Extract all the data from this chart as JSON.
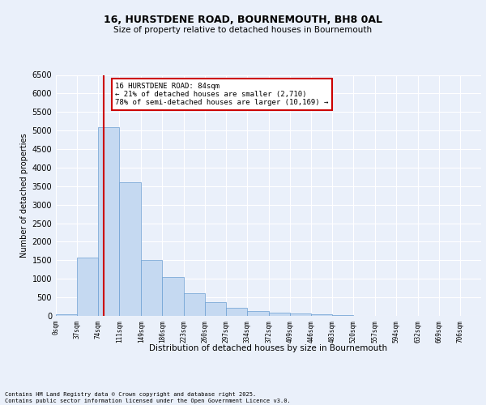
{
  "title1": "16, HURSTDENE ROAD, BOURNEMOUTH, BH8 0AL",
  "title2": "Size of property relative to detached houses in Bournemouth",
  "xlabel": "Distribution of detached houses by size in Bournemouth",
  "ylabel": "Number of detached properties",
  "bar_edges": [
    0,
    37,
    74,
    111,
    149,
    186,
    223,
    260,
    297,
    334,
    372,
    409,
    446,
    483,
    520,
    557,
    594,
    632,
    669,
    706,
    743
  ],
  "bar_heights": [
    50,
    1570,
    5100,
    3600,
    1500,
    1050,
    620,
    380,
    220,
    130,
    90,
    60,
    40,
    20,
    10,
    5,
    3,
    2,
    1,
    1
  ],
  "bar_color": "#c5d9f1",
  "bar_edge_color": "#6b9ed2",
  "property_size": 84,
  "red_line_color": "#cc0000",
  "annotation_text": "16 HURSTDENE ROAD: 84sqm\n← 21% of detached houses are smaller (2,710)\n78% of semi-detached houses are larger (10,169) →",
  "annotation_box_color": "#cc0000",
  "ylim": [
    0,
    6500
  ],
  "yticks": [
    0,
    500,
    1000,
    1500,
    2000,
    2500,
    3000,
    3500,
    4000,
    4500,
    5000,
    5500,
    6000,
    6500
  ],
  "footer1": "Contains HM Land Registry data © Crown copyright and database right 2025.",
  "footer2": "Contains public sector information licensed under the Open Government Licence v3.0.",
  "bg_color": "#eaf0fa",
  "fig_bg_color": "#eaf0fa",
  "grid_color": "#ffffff",
  "xlim": [
    0,
    743
  ]
}
